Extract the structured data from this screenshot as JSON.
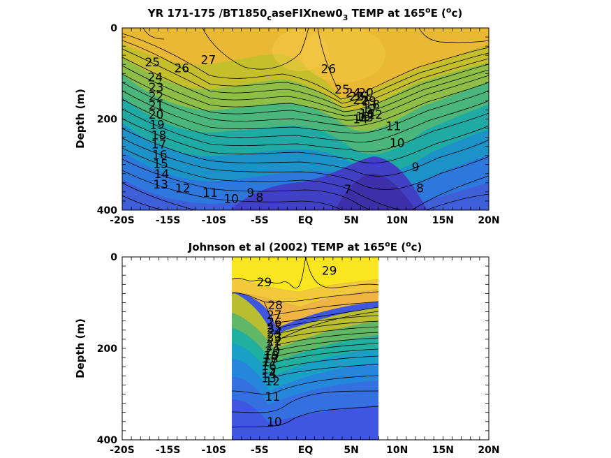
{
  "chart_data": [
    {
      "type": "contour",
      "title": "YR 171-175 /BT1850_caseFIXnew0_3 TEMP at 165^oE (^oc)",
      "title_parts": {
        "a": "YR 171-175 /BT1850",
        "sub1": "c",
        "b": "aseFIXnew0",
        "sub2": "3",
        "c": " TEMP at 165",
        "sup1": "o",
        "d": "E (",
        "sup2": "o",
        "e": "c)"
      },
      "ylabel": "Depth (m)",
      "xlabel": "",
      "xlim": [
        -20,
        20
      ],
      "ylim": [
        0,
        400
      ],
      "y_reversed": true,
      "x_ticks": [
        -20,
        -15,
        -10,
        -5,
        0,
        5,
        10,
        15,
        20
      ],
      "x_tick_labels": [
        "-20S",
        "-15S",
        "-10S",
        "-5S",
        "EQ",
        "5N",
        "10N",
        "15N",
        "20N"
      ],
      "y_ticks": [
        0,
        200,
        400
      ],
      "y_tick_labels": [
        "0",
        "200",
        "400"
      ],
      "contour_interval": 1,
      "colormap": "parula",
      "color_range": [
        6,
        30
      ],
      "contour_labels": [
        {
          "text": "27",
          "x": -10.6,
          "y": 70
        },
        {
          "text": "26",
          "x": -13.5,
          "y": 88
        },
        {
          "text": "25",
          "x": -16.7,
          "y": 75
        },
        {
          "text": "24",
          "x": -16.4,
          "y": 108
        },
        {
          "text": "23",
          "x": -16.3,
          "y": 130
        },
        {
          "text": "22",
          "x": -16.3,
          "y": 150
        },
        {
          "text": "21",
          "x": -16.3,
          "y": 170
        },
        {
          "text": "20",
          "x": -16.3,
          "y": 190
        },
        {
          "text": "19",
          "x": -16.2,
          "y": 212
        },
        {
          "text": "18",
          "x": -16.0,
          "y": 235
        },
        {
          "text": "17",
          "x": -16.0,
          "y": 255
        },
        {
          "text": "16",
          "x": -15.9,
          "y": 278
        },
        {
          "text": "15",
          "x": -15.8,
          "y": 298
        },
        {
          "text": "14",
          "x": -15.7,
          "y": 320
        },
        {
          "text": "13",
          "x": -15.8,
          "y": 343
        },
        {
          "text": "12",
          "x": -13.4,
          "y": 352
        },
        {
          "text": "11",
          "x": -10.4,
          "y": 362
        },
        {
          "text": "10",
          "x": -8.1,
          "y": 375
        },
        {
          "text": "9",
          "x": -6.0,
          "y": 362
        },
        {
          "text": "8",
          "x": -5.0,
          "y": 372
        },
        {
          "text": "7",
          "x": 4.6,
          "y": 354
        },
        {
          "text": "26",
          "x": 2.5,
          "y": 90
        },
        {
          "text": "25",
          "x": 4.0,
          "y": 135
        },
        {
          "text": "24",
          "x": 5.2,
          "y": 142
        },
        {
          "text": "23",
          "x": 5.6,
          "y": 150
        },
        {
          "text": "22",
          "x": 6.0,
          "y": 158
        },
        {
          "text": "21",
          "x": 6.3,
          "y": 150
        },
        {
          "text": "20",
          "x": 6.6,
          "y": 142
        },
        {
          "text": "19",
          "x": 6.9,
          "y": 160
        },
        {
          "text": "18",
          "x": 7.3,
          "y": 168
        },
        {
          "text": "17",
          "x": 7.0,
          "y": 178
        },
        {
          "text": "16",
          "x": 6.7,
          "y": 188
        },
        {
          "text": "15",
          "x": 6.3,
          "y": 195
        },
        {
          "text": "14",
          "x": 6.0,
          "y": 200
        },
        {
          "text": "13",
          "x": 6.6,
          "y": 196
        },
        {
          "text": "12",
          "x": 7.6,
          "y": 190
        },
        {
          "text": "11",
          "x": 9.6,
          "y": 215
        },
        {
          "text": "10",
          "x": 10.0,
          "y": 252
        },
        {
          "text": "9",
          "x": 12.0,
          "y": 305
        },
        {
          "text": "8",
          "x": 12.5,
          "y": 352
        }
      ]
    },
    {
      "type": "contour",
      "title": "Johnson et al (2002) TEMP at 165^oE (^oc)",
      "title_parts": {
        "a": "Johnson et al (2002) TEMP at 165",
        "sup1": "o",
        "b": "E (",
        "sup2": "o",
        "c": "c)"
      },
      "ylabel": "Depth (m)",
      "xlabel": "",
      "xlim": [
        -20,
        20
      ],
      "ylim": [
        0,
        400
      ],
      "y_reversed": true,
      "data_x_range": [
        -8,
        8
      ],
      "x_ticks": [
        -20,
        -15,
        -10,
        -5,
        0,
        5,
        10,
        15,
        20
      ],
      "x_tick_labels": [
        "-20S",
        "-15S",
        "-10S",
        "-5S",
        "EQ",
        "5N",
        "10N",
        "15N",
        "20N"
      ],
      "y_ticks": [
        0,
        200,
        400
      ],
      "y_tick_labels": [
        "0",
        "200",
        "400"
      ],
      "contour_interval": 1,
      "colormap": "parula",
      "color_range": [
        6,
        30
      ],
      "contour_labels": [
        {
          "text": "29",
          "x": -4.5,
          "y": 55
        },
        {
          "text": "29",
          "x": 2.6,
          "y": 30
        },
        {
          "text": "28",
          "x": -3.3,
          "y": 105
        },
        {
          "text": "27",
          "x": -3.4,
          "y": 127
        },
        {
          "text": "26",
          "x": -3.4,
          "y": 143
        },
        {
          "text": "25",
          "x": -3.4,
          "y": 155
        },
        {
          "text": "24",
          "x": -3.4,
          "y": 165
        },
        {
          "text": "23",
          "x": -3.4,
          "y": 175
        },
        {
          "text": "22",
          "x": -3.4,
          "y": 185
        },
        {
          "text": "21",
          "x": -3.5,
          "y": 195
        },
        {
          "text": "20",
          "x": -3.6,
          "y": 205
        },
        {
          "text": "19",
          "x": -3.7,
          "y": 215
        },
        {
          "text": "18",
          "x": -3.8,
          "y": 222
        },
        {
          "text": "17",
          "x": -3.9,
          "y": 230
        },
        {
          "text": "16",
          "x": -4.0,
          "y": 238
        },
        {
          "text": "15",
          "x": -4.0,
          "y": 246
        },
        {
          "text": "14",
          "x": -4.0,
          "y": 255
        },
        {
          "text": "13",
          "x": -4.0,
          "y": 265
        },
        {
          "text": "12",
          "x": -3.6,
          "y": 272
        },
        {
          "text": "11",
          "x": -3.6,
          "y": 305
        },
        {
          "text": "10",
          "x": -3.4,
          "y": 360
        }
      ]
    }
  ]
}
